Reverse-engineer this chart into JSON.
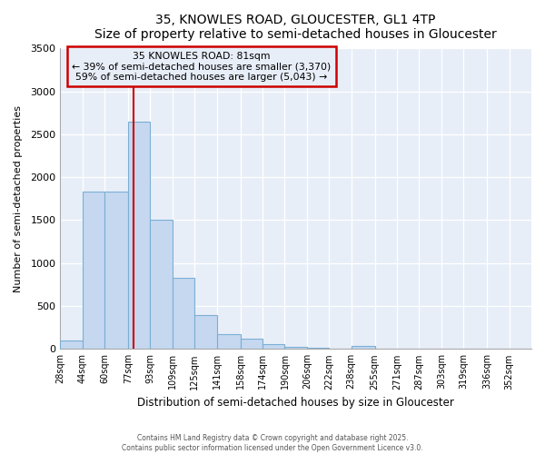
{
  "title": "35, KNOWLES ROAD, GLOUCESTER, GL1 4TP",
  "subtitle": "Size of property relative to semi-detached houses in Gloucester",
  "xlabel": "Distribution of semi-detached houses by size in Gloucester",
  "ylabel": "Number of semi-detached properties",
  "bar_labels": [
    "28sqm",
    "44sqm",
    "60sqm",
    "77sqm",
    "93sqm",
    "109sqm",
    "125sqm",
    "141sqm",
    "158sqm",
    "174sqm",
    "190sqm",
    "206sqm",
    "222sqm",
    "238sqm",
    "255sqm",
    "271sqm",
    "287sqm",
    "303sqm",
    "319sqm",
    "336sqm",
    "352sqm"
  ],
  "bar_values": [
    95,
    1830,
    1830,
    2650,
    1500,
    830,
    390,
    175,
    120,
    55,
    25,
    10,
    5,
    30,
    2,
    2,
    1,
    1,
    1,
    1,
    1
  ],
  "bin_edges": [
    28,
    44,
    60,
    77,
    93,
    109,
    125,
    141,
    158,
    174,
    190,
    206,
    222,
    238,
    255,
    271,
    287,
    303,
    319,
    336,
    352,
    368
  ],
  "bar_color": "#c5d8f0",
  "bar_edge_color": "#7bafd4",
  "vline_x": 81,
  "vline_color": "#cc0000",
  "annotation_title": "35 KNOWLES ROAD: 81sqm",
  "annotation_line1": "← 39% of semi-detached houses are smaller (3,370)",
  "annotation_line2": "59% of semi-detached houses are larger (5,043) →",
  "annotation_box_color": "#cc0000",
  "ylim": [
    0,
    3500
  ],
  "background_color": "#ffffff",
  "plot_bg_color": "#e8eef8",
  "grid_color": "#ffffff",
  "footer_line1": "Contains HM Land Registry data © Crown copyright and database right 2025.",
  "footer_line2": "Contains public sector information licensed under the Open Government Licence v3.0."
}
